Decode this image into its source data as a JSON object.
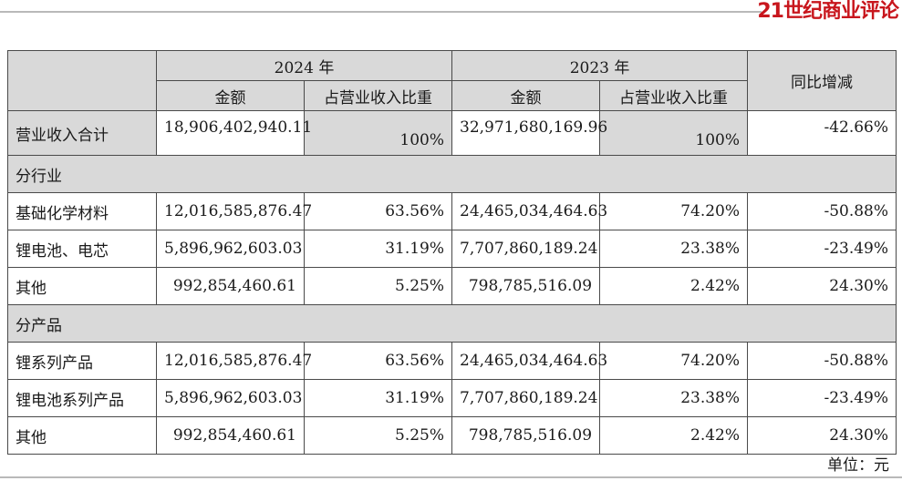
{
  "brand": "21世纪商业评论",
  "table": {
    "years": [
      "2024 年",
      "2023 年"
    ],
    "amount_label": "金额",
    "share_label": "占营业收入比重",
    "yoy_label": "同比增减",
    "total": {
      "label": "营业收入合计",
      "amt_2024": "18,906,402,940.11",
      "share_2024": "100%",
      "amt_2023": "32,971,680,169.96",
      "share_2023": "100%",
      "yoy": "-42.66%"
    },
    "section_industry": "分行业",
    "industry_rows": [
      {
        "label": "基础化学材料",
        "amt_2024": "12,016,585,876.47",
        "share_2024": "63.56%",
        "amt_2023": "24,465,034,464.63",
        "share_2023": "74.20%",
        "yoy": "-50.88%"
      },
      {
        "label": "锂电池、电芯",
        "amt_2024": "5,896,962,603.03",
        "share_2024": "31.19%",
        "amt_2023": "7,707,860,189.24",
        "share_2023": "23.38%",
        "yoy": "-23.49%"
      },
      {
        "label": "其他",
        "amt_2024": "992,854,460.61",
        "share_2024": "5.25%",
        "amt_2023": "798,785,516.09",
        "share_2023": "2.42%",
        "yoy": "24.30%"
      }
    ],
    "section_product": "分产品",
    "product_rows": [
      {
        "label": "锂系列产品",
        "amt_2024": "12,016,585,876.47",
        "share_2024": "63.56%",
        "amt_2023": "24,465,034,464.63",
        "share_2023": "74.20%",
        "yoy": "-50.88%"
      },
      {
        "label": "锂电池系列产品",
        "amt_2024": "5,896,962,603.03",
        "share_2024": "31.19%",
        "amt_2023": "7,707,860,189.24",
        "share_2023": "23.38%",
        "yoy": "-23.49%"
      },
      {
        "label": "其他",
        "amt_2024": "992,854,460.61",
        "share_2024": "5.25%",
        "amt_2023": "798,785,516.09",
        "share_2023": "2.42%",
        "yoy": "24.30%"
      }
    ]
  },
  "unit": "单位：元"
}
